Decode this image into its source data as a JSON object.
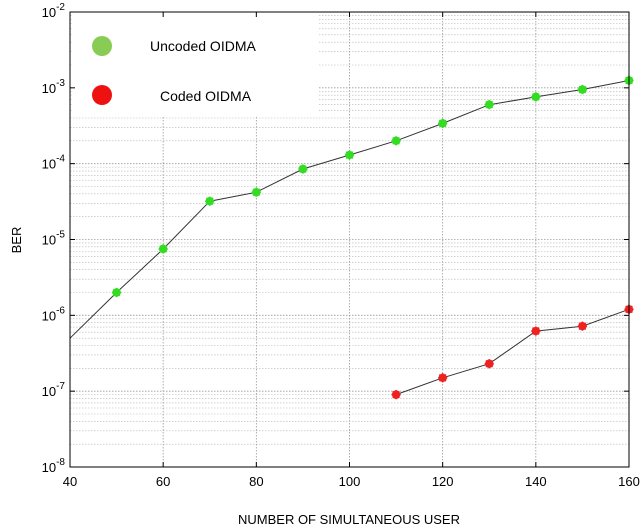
{
  "chart_data": {
    "type": "line",
    "xlabel": "NUMBER OF SIMULTANEOUS USER",
    "ylabel": "BER",
    "xlim": [
      40,
      160
    ],
    "ylim": [
      1e-08,
      0.01
    ],
    "yscale": "log",
    "grid": true,
    "legend_placement": "top-left",
    "x_ticks": [
      "40",
      "60",
      "80",
      "100",
      "120",
      "140",
      "160"
    ],
    "y_ticks": [
      {
        "base": "10",
        "exp": "-8"
      },
      {
        "base": "10",
        "exp": "-7"
      },
      {
        "base": "10",
        "exp": "-6"
      },
      {
        "base": "10",
        "exp": "-5"
      },
      {
        "base": "10",
        "exp": "-4"
      },
      {
        "base": "10",
        "exp": "-3"
      },
      {
        "base": "10",
        "exp": "-2"
      }
    ],
    "series": [
      {
        "name": "Uncoded OIDMA",
        "marker_color": "#33dd22",
        "legend_color": "#88cc55",
        "line_color": "#333333",
        "x": [
          40,
          50,
          60,
          70,
          80,
          90,
          100,
          110,
          120,
          130,
          140,
          150,
          160
        ],
        "y": [
          5e-07,
          2e-06,
          7.5e-06,
          3.2e-05,
          4.2e-05,
          8.5e-05,
          0.00013,
          0.0002,
          0.00034,
          0.0006,
          0.00076,
          0.00095,
          0.00125
        ],
        "marker_x": [
          50,
          60,
          70,
          80,
          90,
          100,
          110,
          120,
          130,
          140,
          150,
          160
        ]
      },
      {
        "name": "Coded OIDMA",
        "marker_color": "#ee2222",
        "legend_color": "#ee1111",
        "line_color": "#333333",
        "x": [
          110,
          120,
          130,
          140,
          150,
          160
        ],
        "y": [
          9e-08,
          1.5e-07,
          2.3e-07,
          6.2e-07,
          7.2e-07,
          1.2e-06
        ],
        "marker_x": [
          110,
          120,
          130,
          140,
          150,
          160
        ]
      }
    ]
  }
}
